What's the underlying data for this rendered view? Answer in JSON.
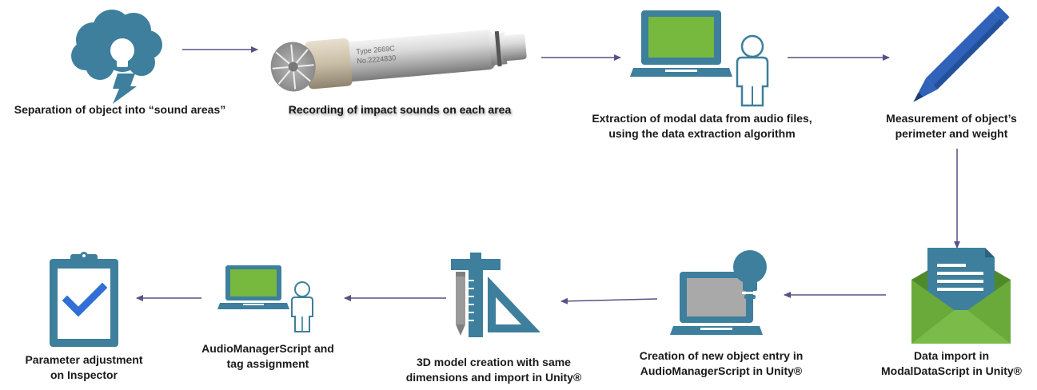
{
  "colors": {
    "teal": "#3d7f9c",
    "teal_dark": "#356f89",
    "green_screen": "#77b83f",
    "green_envelope": "#6aaa3a",
    "blue_pen": "#2f62b8",
    "check_blue": "#2f6fd6",
    "arrow": "#5a4f86",
    "grey_screen": "#a9a9a9"
  },
  "steps": [
    {
      "id": "step1",
      "icon": "brain-cloud-lightbulb-icon",
      "label": "Separation of object into “sound areas”"
    },
    {
      "id": "step2",
      "icon": "microphone-icon",
      "label": "Recording of impact sounds on each area",
      "mic_text": {
        "line1": "Type 2669C",
        "line2": "No.2224830"
      }
    },
    {
      "id": "step3",
      "icon": "laptop-user-icon",
      "label_line1": "Extraction of modal data from audio files,",
      "label_line2": "using the data extraction algorithm"
    },
    {
      "id": "step4",
      "icon": "pencil-icon",
      "label_line1": "Measurement of object’s",
      "label_line2": "perimeter and weight"
    },
    {
      "id": "step5",
      "icon": "envelope-document-icon",
      "label_line1": "Data import in",
      "label_line2": "ModalDataScript in Unity®"
    },
    {
      "id": "step6",
      "icon": "laptop-lightbulb-icon",
      "label_line1": "Creation of new object entry in",
      "label_line2": "AudioManagerScript in Unity®"
    },
    {
      "id": "step7",
      "icon": "drafting-tools-icon",
      "label_line1": "3D model creation with same",
      "label_line2": "dimensions and import in Unity®"
    },
    {
      "id": "step8",
      "icon": "laptop-user-icon",
      "label_line1": "AudioManagerScript and",
      "label_line2": "tag assignment"
    },
    {
      "id": "step9",
      "icon": "clipboard-check-icon",
      "label_line1": "Parameter adjustment",
      "label_line2": "on Inspector"
    }
  ]
}
